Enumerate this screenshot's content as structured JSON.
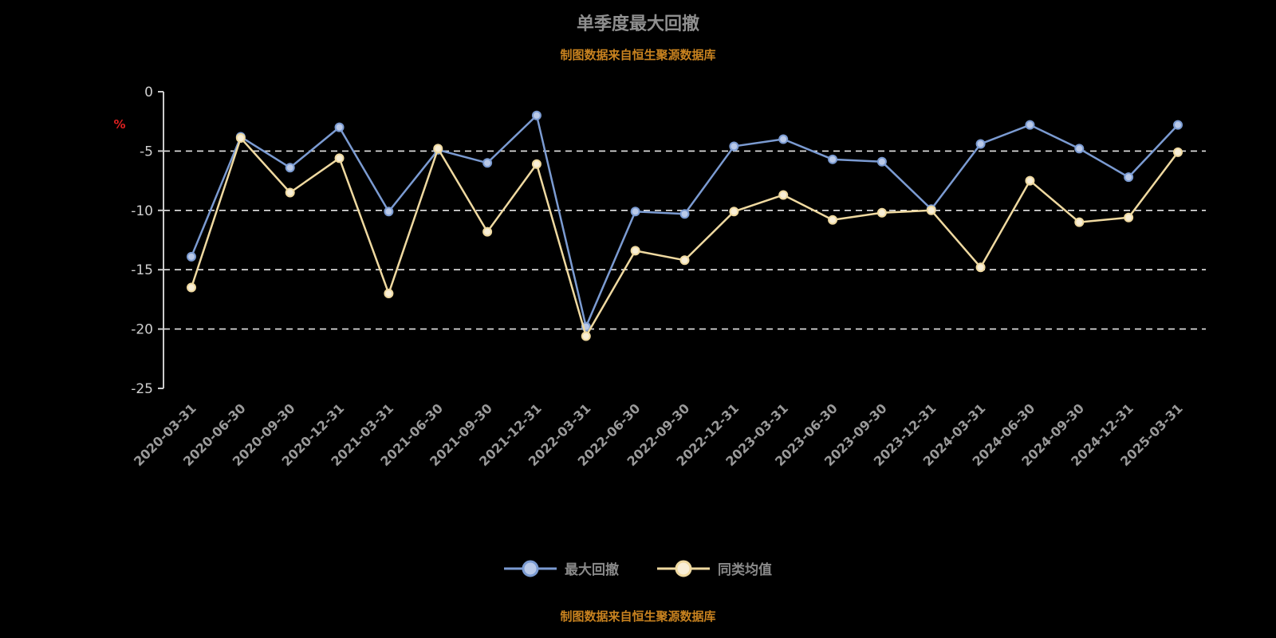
{
  "chart_data": {
    "type": "line",
    "title": "单季度最大回撤",
    "subtitle": "制图数据来自恒生聚源数据库",
    "footer": "制图数据来自恒生聚源数据库",
    "ylabel": "%",
    "ylim": [
      -25,
      0
    ],
    "yticks": [
      0,
      -5,
      -10,
      -15,
      -20,
      -25
    ],
    "grid": "dashed-horizontal",
    "legend_position": "bottom-center",
    "categories": [
      "2020-03-31",
      "2020-06-30",
      "2020-09-30",
      "2020-12-31",
      "2021-03-31",
      "2021-06-30",
      "2021-09-30",
      "2021-12-31",
      "2022-03-31",
      "2022-06-30",
      "2022-09-30",
      "2022-12-31",
      "2023-03-31",
      "2023-06-30",
      "2023-09-30",
      "2023-12-31",
      "2024-03-31",
      "2024-06-30",
      "2024-09-30",
      "2024-12-31",
      "2025-03-31"
    ],
    "series": [
      {
        "name": "最大回撤",
        "color": "#7b9bd2",
        "marker_fill": "#b9c9e8",
        "values": [
          -13.9,
          -3.8,
          -6.4,
          -3.0,
          -10.1,
          -4.9,
          -6.0,
          -2.0,
          -19.8,
          -10.1,
          -10.3,
          -4.6,
          -4.0,
          -5.7,
          -5.9,
          -9.9,
          -4.4,
          -2.8,
          -4.8,
          -7.2,
          -2.8
        ]
      },
      {
        "name": "同类均值",
        "color": "#efd9a0",
        "marker_fill": "#f8eed6",
        "values": [
          -16.5,
          -3.9,
          -8.5,
          -5.6,
          -17.0,
          -4.8,
          -11.8,
          -6.1,
          -20.6,
          -13.4,
          -14.2,
          -10.1,
          -8.7,
          -10.8,
          -10.2,
          -10.0,
          -14.8,
          -7.5,
          -11.0,
          -10.6,
          -5.1
        ]
      }
    ],
    "colors": {
      "background": "#000000",
      "title": "#8f8f8f",
      "subtitle": "#c8821f",
      "footer": "#c8821f",
      "axis": "#cccccc",
      "grid": "#e6e6e6",
      "tick_label": "#cfcfcf",
      "x_label": "#9a9a9a",
      "ylabel": "#dd2020",
      "legend_label": "#8a8a8a"
    }
  }
}
